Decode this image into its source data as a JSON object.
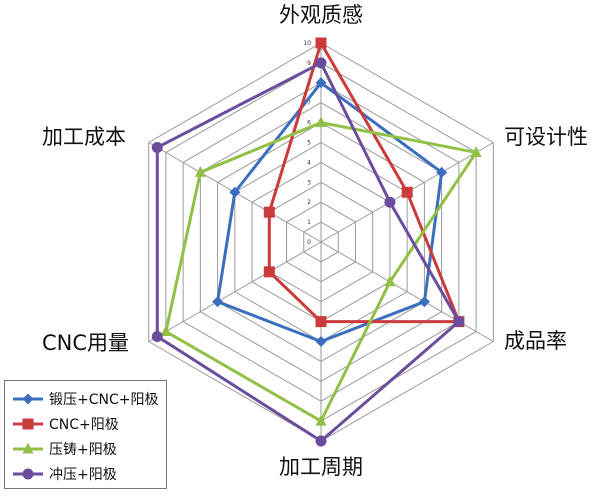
{
  "chart_data": {
    "type": "radar",
    "axes": [
      "外观质感",
      "可设计性",
      "成品率",
      "加工周期",
      "CNC用量",
      "加工成本"
    ],
    "rlim": [
      0,
      10
    ],
    "ticks": [
      "0",
      "1",
      "2",
      "3",
      "4",
      "5",
      "6",
      "7",
      "8",
      "9",
      "10"
    ],
    "grid": true,
    "legend_position": "bottom-left",
    "series": [
      {
        "name": "锻压+CNC+阳极",
        "color": "#3a6fbf",
        "marker": "diamond",
        "values": [
          8,
          7,
          6,
          5,
          6,
          5
        ]
      },
      {
        "name": "CNC+阳极",
        "color": "#cc3b3b",
        "marker": "square",
        "values": [
          10,
          5,
          8,
          4,
          3,
          3
        ]
      },
      {
        "name": "压铸+阳极",
        "color": "#92c047",
        "marker": "triangle",
        "values": [
          6,
          9,
          4,
          9,
          9,
          7
        ]
      },
      {
        "name": "冲压+阳极",
        "color": "#6a4d9c",
        "marker": "circle",
        "values": [
          9,
          4,
          8,
          10,
          9.5,
          9.5
        ]
      }
    ]
  }
}
